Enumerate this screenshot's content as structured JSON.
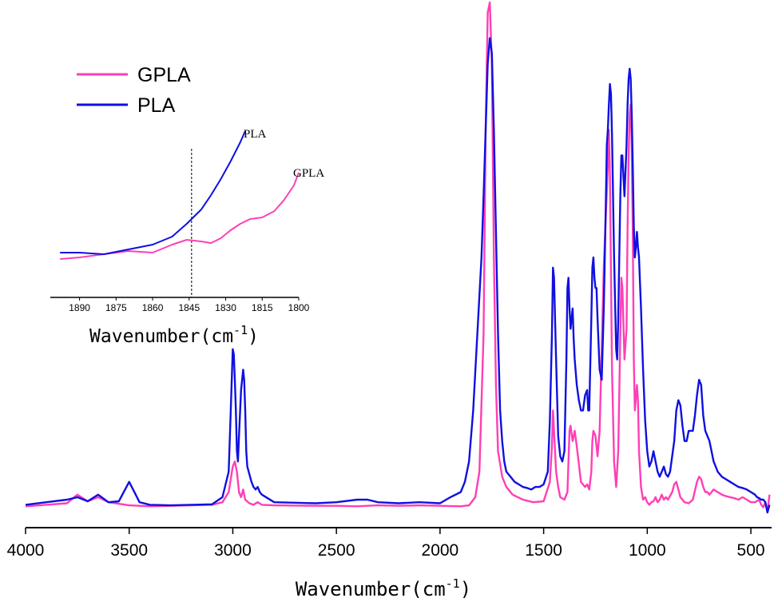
{
  "colors": {
    "GPLA": "#ff3fb5",
    "PLA": "#1010e0",
    "axis": "#000000"
  },
  "chart_data": [
    {
      "type": "line",
      "x_reversed": true,
      "xlim": [
        4000,
        400
      ],
      "ylim": [
        0,
        1
      ],
      "xticks": [
        4000,
        3500,
        3000,
        2500,
        2000,
        1500,
        1000,
        500
      ],
      "xlabel": "Wavenumber(cm",
      "xlabel_sup": "-1",
      "xlabel_close": ")",
      "ylabel": "",
      "legend": {
        "placement": "top-left",
        "entries": [
          "GPLA",
          "PLA"
        ]
      },
      "series": [
        {
          "name": "GPLA",
          "x": [
            4000,
            3900,
            3800,
            3750,
            3700,
            3650,
            3600,
            3500,
            3400,
            3300,
            3100,
            3050,
            3020,
            3000,
            2990,
            2980,
            2970,
            2960,
            2950,
            2940,
            2920,
            2900,
            2880,
            2860,
            2800,
            2600,
            2500,
            2400,
            2300,
            2200,
            2100,
            2000,
            1900,
            1860,
            1830,
            1810,
            1790,
            1780,
            1770,
            1760,
            1750,
            1740,
            1730,
            1720,
            1700,
            1680,
            1650,
            1600,
            1550,
            1500,
            1470,
            1460,
            1455,
            1450,
            1440,
            1430,
            1420,
            1400,
            1385,
            1375,
            1370,
            1360,
            1350,
            1340,
            1320,
            1300,
            1290,
            1280,
            1270,
            1265,
            1260,
            1250,
            1240,
            1230,
            1220,
            1210,
            1200,
            1190,
            1185,
            1180,
            1170,
            1160,
            1150,
            1140,
            1130,
            1125,
            1120,
            1110,
            1100,
            1095,
            1090,
            1085,
            1080,
            1075,
            1070,
            1065,
            1060,
            1050,
            1045,
            1040,
            1030,
            1020,
            1010,
            1000,
            990,
            980,
            970,
            960,
            950,
            940,
            930,
            920,
            910,
            900,
            880,
            870,
            860,
            850,
            840,
            820,
            800,
            780,
            760,
            750,
            740,
            730,
            720,
            710,
            700,
            690,
            680,
            660,
            640,
            620,
            600,
            580,
            560,
            540,
            520,
            500,
            480,
            460,
            450,
            440,
            430,
            420,
            410
          ],
          "values": [
            0.012,
            0.015,
            0.018,
            0.035,
            0.022,
            0.03,
            0.02,
            0.014,
            0.012,
            0.013,
            0.015,
            0.02,
            0.04,
            0.09,
            0.1,
            0.08,
            0.04,
            0.03,
            0.045,
            0.025,
            0.018,
            0.015,
            0.02,
            0.015,
            0.014,
            0.013,
            0.013,
            0.012,
            0.014,
            0.013,
            0.014,
            0.013,
            0.012,
            0.014,
            0.03,
            0.08,
            0.35,
            0.75,
            0.98,
            1.0,
            0.88,
            0.5,
            0.25,
            0.12,
            0.07,
            0.05,
            0.035,
            0.025,
            0.02,
            0.022,
            0.06,
            0.13,
            0.2,
            0.16,
            0.08,
            0.05,
            0.03,
            0.025,
            0.04,
            0.16,
            0.17,
            0.14,
            0.16,
            0.13,
            0.06,
            0.05,
            0.055,
            0.045,
            0.08,
            0.14,
            0.16,
            0.15,
            0.11,
            0.16,
            0.32,
            0.48,
            0.58,
            0.68,
            0.75,
            0.66,
            0.28,
            0.1,
            0.05,
            0.12,
            0.35,
            0.46,
            0.44,
            0.3,
            0.36,
            0.56,
            0.7,
            0.78,
            0.8,
            0.72,
            0.55,
            0.3,
            0.2,
            0.25,
            0.22,
            0.12,
            0.05,
            0.025,
            0.03,
            0.02,
            0.015,
            0.02,
            0.022,
            0.03,
            0.02,
            0.025,
            0.035,
            0.025,
            0.03,
            0.025,
            0.04,
            0.055,
            0.06,
            0.045,
            0.03,
            0.02,
            0.018,
            0.025,
            0.06,
            0.07,
            0.065,
            0.05,
            0.04,
            0.04,
            0.035,
            0.04,
            0.045,
            0.04,
            0.035,
            0.032,
            0.03,
            0.028,
            0.025,
            0.03,
            0.025,
            0.02,
            0.02,
            0.025,
            0.015,
            0.01,
            0.02,
            0.0,
            0.035
          ]
        },
        {
          "name": "PLA",
          "x": [
            4000,
            3900,
            3800,
            3750,
            3700,
            3650,
            3600,
            3550,
            3500,
            3450,
            3400,
            3300,
            3100,
            3050,
            3020,
            3010,
            3000,
            2995,
            2990,
            2985,
            2980,
            2975,
            2970,
            2960,
            2950,
            2945,
            2940,
            2935,
            2930,
            2920,
            2910,
            2900,
            2890,
            2880,
            2870,
            2860,
            2800,
            2600,
            2500,
            2400,
            2350,
            2300,
            2200,
            2100,
            2000,
            1950,
            1900,
            1880,
            1860,
            1840,
            1820,
            1800,
            1790,
            1780,
            1770,
            1760,
            1750,
            1740,
            1730,
            1720,
            1710,
            1700,
            1690,
            1680,
            1660,
            1640,
            1620,
            1600,
            1580,
            1560,
            1540,
            1520,
            1500,
            1480,
            1470,
            1460,
            1455,
            1450,
            1440,
            1430,
            1420,
            1410,
            1400,
            1390,
            1385,
            1380,
            1375,
            1370,
            1365,
            1360,
            1355,
            1350,
            1340,
            1330,
            1320,
            1310,
            1300,
            1290,
            1285,
            1280,
            1270,
            1265,
            1260,
            1255,
            1250,
            1245,
            1240,
            1230,
            1220,
            1210,
            1200,
            1195,
            1190,
            1185,
            1180,
            1175,
            1170,
            1160,
            1150,
            1145,
            1140,
            1130,
            1125,
            1120,
            1115,
            1110,
            1100,
            1095,
            1090,
            1085,
            1080,
            1075,
            1070,
            1065,
            1060,
            1055,
            1050,
            1045,
            1040,
            1030,
            1020,
            1010,
            1000,
            990,
            980,
            970,
            960,
            950,
            940,
            930,
            920,
            910,
            900,
            890,
            880,
            870,
            860,
            850,
            840,
            830,
            820,
            810,
            800,
            790,
            780,
            770,
            760,
            750,
            740,
            730,
            720,
            710,
            700,
            690,
            680,
            670,
            660,
            650,
            640,
            620,
            600,
            580,
            560,
            540,
            520,
            500,
            480,
            470,
            460,
            450,
            440,
            430,
            420,
            410
          ],
          "values": [
            0.015,
            0.02,
            0.025,
            0.03,
            0.022,
            0.035,
            0.02,
            0.022,
            0.06,
            0.02,
            0.015,
            0.014,
            0.016,
            0.03,
            0.08,
            0.2,
            0.32,
            0.31,
            0.26,
            0.2,
            0.12,
            0.1,
            0.15,
            0.24,
            0.28,
            0.26,
            0.2,
            0.12,
            0.09,
            0.075,
            0.06,
            0.05,
            0.045,
            0.05,
            0.04,
            0.035,
            0.02,
            0.018,
            0.02,
            0.025,
            0.025,
            0.02,
            0.018,
            0.02,
            0.018,
            0.03,
            0.04,
            0.06,
            0.1,
            0.2,
            0.35,
            0.5,
            0.62,
            0.75,
            0.88,
            0.93,
            0.9,
            0.75,
            0.55,
            0.35,
            0.2,
            0.14,
            0.1,
            0.08,
            0.07,
            0.06,
            0.055,
            0.05,
            0.048,
            0.045,
            0.05,
            0.05,
            0.055,
            0.08,
            0.18,
            0.35,
            0.48,
            0.46,
            0.3,
            0.15,
            0.11,
            0.1,
            0.12,
            0.3,
            0.44,
            0.46,
            0.4,
            0.36,
            0.38,
            0.4,
            0.34,
            0.3,
            0.25,
            0.22,
            0.2,
            0.2,
            0.23,
            0.24,
            0.2,
            0.2,
            0.38,
            0.48,
            0.5,
            0.46,
            0.44,
            0.44,
            0.38,
            0.28,
            0.26,
            0.4,
            0.6,
            0.72,
            0.75,
            0.8,
            0.84,
            0.82,
            0.74,
            0.5,
            0.32,
            0.3,
            0.38,
            0.62,
            0.7,
            0.7,
            0.66,
            0.62,
            0.72,
            0.8,
            0.85,
            0.87,
            0.85,
            0.78,
            0.68,
            0.56,
            0.5,
            0.52,
            0.55,
            0.52,
            0.5,
            0.4,
            0.28,
            0.18,
            0.12,
            0.09,
            0.1,
            0.12,
            0.1,
            0.08,
            0.07,
            0.08,
            0.09,
            0.075,
            0.07,
            0.08,
            0.11,
            0.14,
            0.2,
            0.22,
            0.21,
            0.17,
            0.14,
            0.14,
            0.16,
            0.16,
            0.16,
            0.19,
            0.23,
            0.26,
            0.25,
            0.19,
            0.16,
            0.15,
            0.14,
            0.12,
            0.1,
            0.09,
            0.08,
            0.075,
            0.07,
            0.065,
            0.06,
            0.055,
            0.05,
            0.048,
            0.045,
            0.04,
            0.035,
            0.03,
            0.028,
            0.025,
            0.025,
            0.02,
            0.0,
            0.015
          ]
        }
      ]
    },
    {
      "type": "line",
      "inset": true,
      "x_reversed": true,
      "xlim": [
        1900,
        1800
      ],
      "ylim": [
        0,
        1
      ],
      "xticks": [
        1890,
        1875,
        1860,
        1845,
        1830,
        1815,
        1800
      ],
      "xlabel": "Wavenumber(cm",
      "xlabel_sup": "-1",
      "xlabel_close": ")",
      "vline_x": 1844,
      "annotations": [
        "PLA",
        "GPLA"
      ],
      "series": [
        {
          "name": "GPLA",
          "x": [
            1898,
            1890,
            1880,
            1870,
            1860,
            1852,
            1846,
            1840,
            1836,
            1832,
            1828,
            1824,
            1820,
            1815,
            1810,
            1806,
            1802,
            1800
          ],
          "values": [
            0.16,
            0.17,
            0.19,
            0.21,
            0.2,
            0.25,
            0.28,
            0.27,
            0.26,
            0.29,
            0.34,
            0.38,
            0.41,
            0.42,
            0.46,
            0.53,
            0.62,
            0.7
          ]
        },
        {
          "name": "PLA",
          "x": [
            1898,
            1890,
            1880,
            1870,
            1860,
            1852,
            1846,
            1840,
            1836,
            1832,
            1828,
            1824,
            1822
          ],
          "values": [
            0.2,
            0.2,
            0.19,
            0.22,
            0.25,
            0.3,
            0.38,
            0.47,
            0.56,
            0.66,
            0.77,
            0.89,
            0.96
          ]
        }
      ]
    }
  ]
}
